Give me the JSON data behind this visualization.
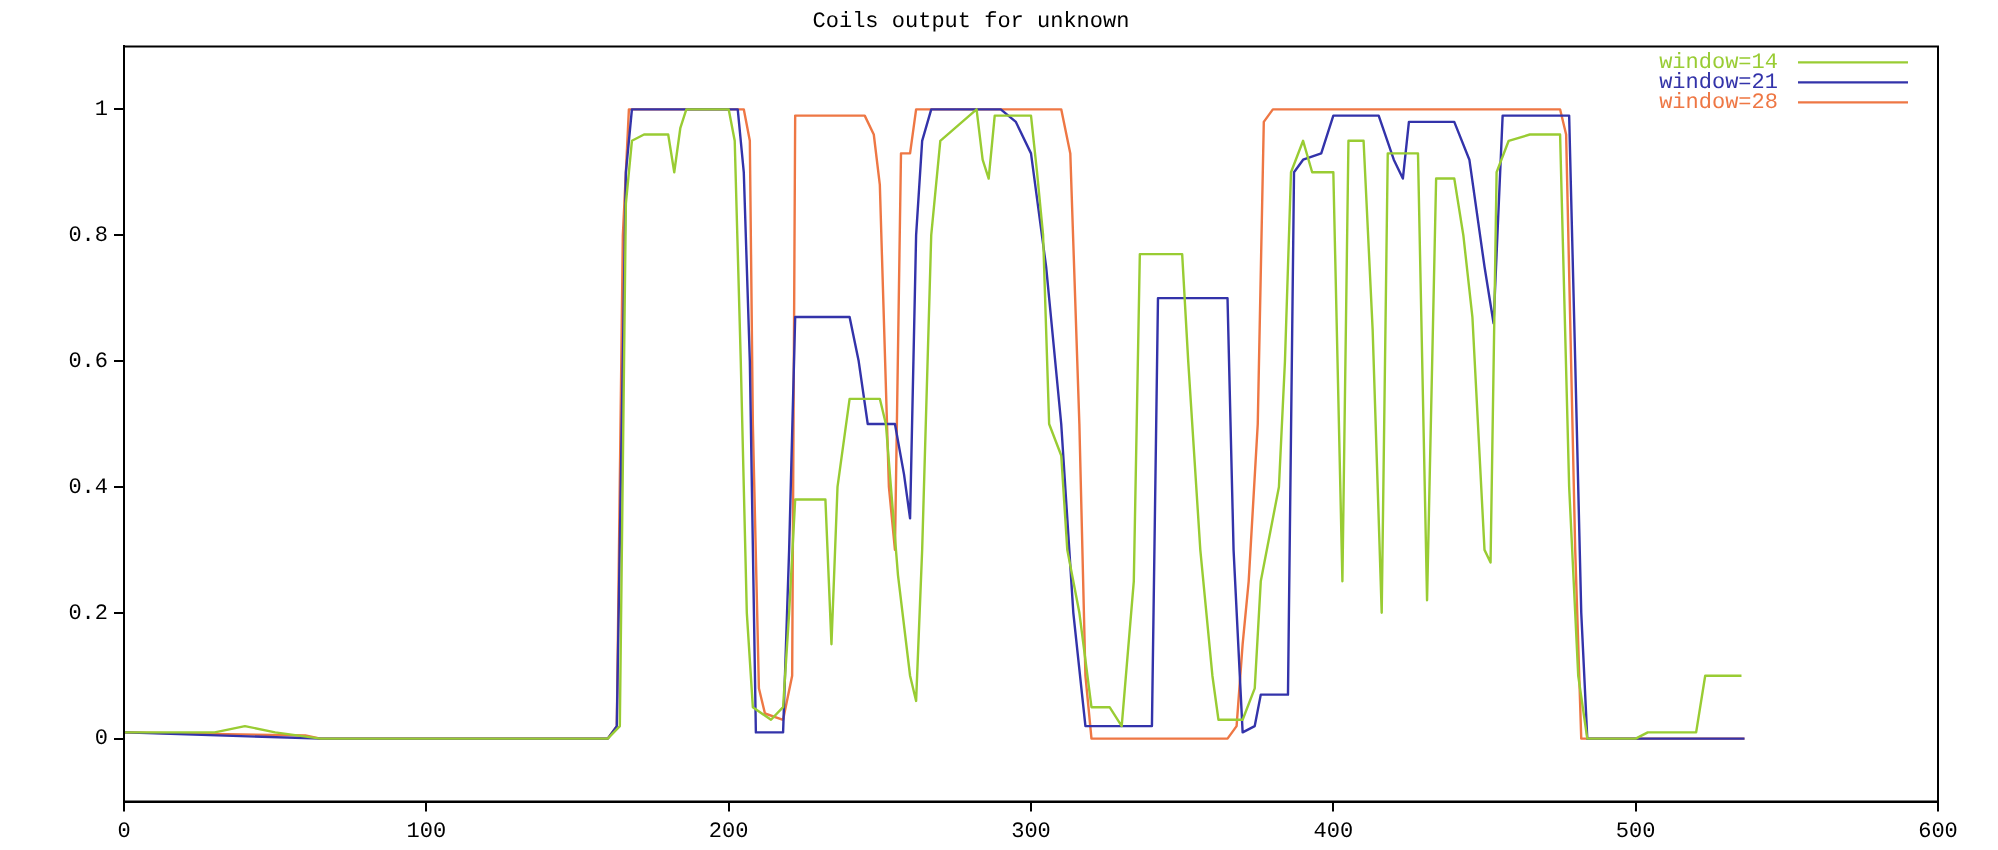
{
  "chart_data": {
    "type": "line",
    "title": "Coils output for unknown",
    "xlim": [
      0,
      600
    ],
    "xticks": [
      0,
      100,
      200,
      300,
      400,
      500,
      600
    ],
    "ylim": [
      -0.1,
      1.1
    ],
    "yticks": [
      0,
      0.2,
      0.4,
      0.6,
      0.8,
      1
    ],
    "grid": false,
    "legend": "top right",
    "marker": "none",
    "line_style": "solid",
    "series": [
      {
        "name": "window=14",
        "color": "#99cc33",
        "x": [
          0,
          30,
          40,
          50,
          65,
          160,
          164,
          166,
          168,
          172,
          180,
          182,
          184,
          186,
          200,
          202,
          204,
          206,
          208,
          214,
          218,
          220,
          222,
          232,
          234,
          236,
          240,
          250,
          252,
          256,
          260,
          262,
          264,
          267,
          270,
          282,
          284,
          286,
          288,
          300,
          302,
          304,
          306,
          310,
          312,
          316,
          320,
          326,
          330,
          334,
          336,
          350,
          352,
          356,
          360,
          362,
          370,
          374,
          376,
          382,
          384,
          386,
          390,
          393,
          400,
          403,
          405,
          410,
          413,
          416,
          418,
          428,
          431,
          434,
          440,
          443,
          446,
          450,
          452,
          454,
          458,
          465,
          475,
          478,
          481,
          484,
          500,
          504,
          520,
          523,
          535
        ],
        "values": [
          0.01,
          0.01,
          0.02,
          0.01,
          0,
          0,
          0.02,
          0.85,
          0.95,
          0.96,
          0.96,
          0.9,
          0.97,
          1,
          1,
          0.95,
          0.6,
          0.2,
          0.05,
          0.03,
          0.05,
          0.2,
          0.38,
          0.38,
          0.15,
          0.4,
          0.54,
          0.54,
          0.5,
          0.26,
          0.1,
          0.06,
          0.3,
          0.8,
          0.95,
          1,
          0.92,
          0.89,
          0.99,
          0.99,
          0.9,
          0.8,
          0.5,
          0.45,
          0.3,
          0.2,
          0.05,
          0.05,
          0.02,
          0.25,
          0.77,
          0.77,
          0.6,
          0.3,
          0.1,
          0.03,
          0.03,
          0.08,
          0.25,
          0.4,
          0.6,
          0.9,
          0.95,
          0.9,
          0.9,
          0.25,
          0.95,
          0.95,
          0.65,
          0.2,
          0.93,
          0.93,
          0.22,
          0.89,
          0.89,
          0.8,
          0.67,
          0.3,
          0.28,
          0.9,
          0.95,
          0.96,
          0.96,
          0.4,
          0.1,
          0,
          0,
          0.01,
          0.01,
          0.1,
          0.1
        ]
      },
      {
        "name": "window=21",
        "color": "#3333aa",
        "x": [
          0,
          65,
          160,
          163,
          166,
          168,
          203,
          205,
          207,
          209,
          218,
          220,
          222,
          240,
          243,
          246,
          255,
          258,
          260,
          262,
          264,
          267,
          290,
          295,
          300,
          305,
          310,
          314,
          318,
          340,
          342,
          365,
          367,
          370,
          374,
          376,
          385,
          387,
          390,
          396,
          400,
          415,
          420,
          423,
          425,
          440,
          445,
          450,
          453,
          456,
          478,
          480,
          482,
          484,
          536
        ],
        "values": [
          0.01,
          0,
          0,
          0.02,
          0.9,
          1,
          1,
          0.9,
          0.6,
          0.01,
          0.01,
          0.3,
          0.67,
          0.67,
          0.6,
          0.5,
          0.5,
          0.42,
          0.35,
          0.8,
          0.95,
          1,
          1,
          0.98,
          0.93,
          0.75,
          0.5,
          0.2,
          0.02,
          0.02,
          0.7,
          0.7,
          0.3,
          0.01,
          0.02,
          0.07,
          0.07,
          0.9,
          0.92,
          0.93,
          0.99,
          0.99,
          0.92,
          0.89,
          0.98,
          0.98,
          0.92,
          0.75,
          0.66,
          0.99,
          0.99,
          0.6,
          0.2,
          0,
          0
        ]
      },
      {
        "name": "window=28",
        "color": "#ee7744",
        "x": [
          0,
          60,
          65,
          160,
          163,
          165,
          167,
          205,
          207,
          208,
          210,
          212,
          218,
          221,
          222,
          245,
          248,
          250,
          253,
          255,
          257,
          260,
          262,
          310,
          313,
          316,
          318,
          320,
          365,
          368,
          370,
          372,
          375,
          377,
          380,
          475,
          477,
          480,
          482,
          536
        ],
        "values": [
          0.01,
          0.005,
          0,
          0,
          0.02,
          0.8,
          1,
          1,
          0.95,
          0.5,
          0.08,
          0.04,
          0.03,
          0.1,
          0.99,
          0.99,
          0.96,
          0.88,
          0.4,
          0.3,
          0.93,
          0.93,
          1,
          1,
          0.93,
          0.5,
          0.1,
          0,
          0,
          0.02,
          0.15,
          0.25,
          0.5,
          0.98,
          1,
          1,
          0.96,
          0.3,
          0,
          0
        ]
      }
    ]
  }
}
